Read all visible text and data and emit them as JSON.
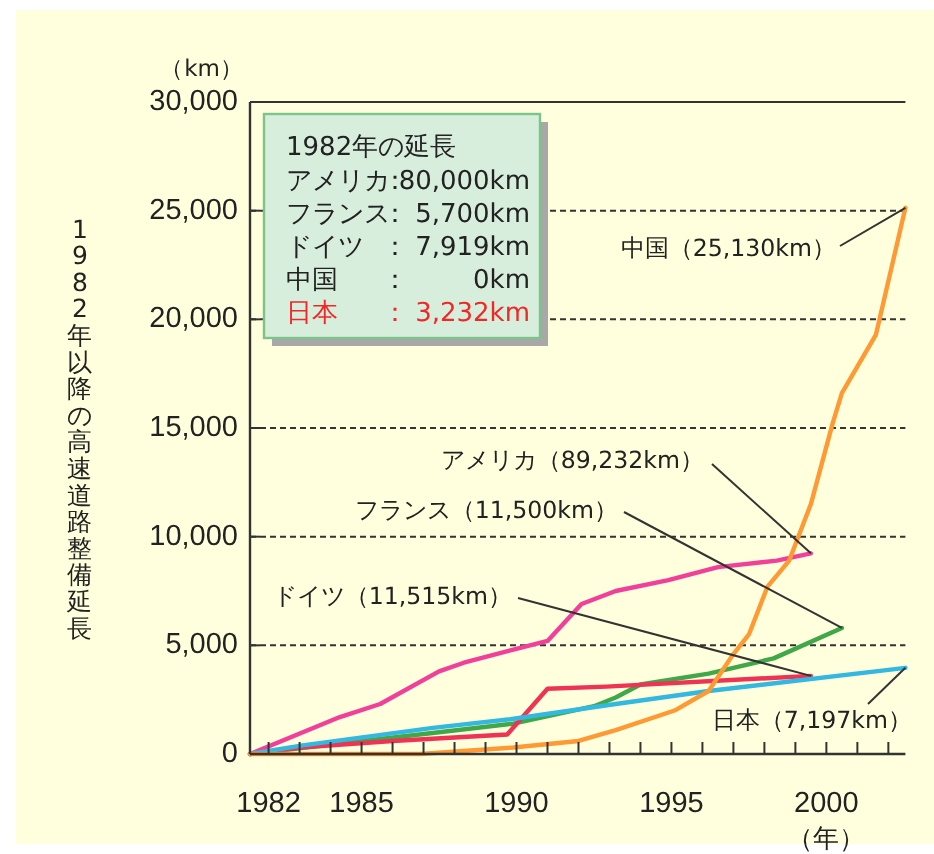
{
  "chart_data": {
    "type": "line",
    "xlabel": "（年）",
    "ylabel": "1982年以降の高速道路整備延長",
    "annotations": [
      "（km）",
      "1982年の延長",
      "アメリカ：80,000km",
      "フランス： 5,700km",
      "ドイツ　： 7,919km",
      "中国　　：     0km",
      "日本　　： 3,232km"
    ],
    "xlim": [
      1981.4,
      2002.55
    ],
    "xticks": [
      1982,
      {
        "value": 1983,
        "label": null
      },
      {
        "value": 1984,
        "label": null
      },
      1985,
      {
        "value": 1986,
        "label": null
      },
      {
        "value": 1987,
        "label": null
      },
      {
        "value": 1988,
        "label": null
      },
      {
        "value": 1989,
        "label": null
      },
      1990,
      {
        "value": 1991,
        "label": null
      },
      {
        "value": 1992,
        "label": null
      },
      {
        "value": 1993,
        "label": null
      },
      {
        "value": 1994,
        "label": null
      },
      1995,
      {
        "value": 1996,
        "label": null
      },
      {
        "value": 1997,
        "label": null
      },
      {
        "value": 1998,
        "label": null
      },
      {
        "value": 1999,
        "label": null
      },
      2000,
      {
        "value": 2001,
        "label": null
      },
      {
        "value": 2002,
        "label": null
      }
    ],
    "ylim": [
      0,
      30000
    ],
    "yticks": [
      0,
      {
        "value": 5000,
        "label": "5,000"
      },
      {
        "value": 10000,
        "label": "10,000"
      },
      {
        "value": 15000,
        "label": "15,000"
      },
      {
        "value": 20000,
        "label": "20,000"
      },
      {
        "value": 25000,
        "label": "25,000"
      },
      {
        "value": 30000,
        "label": "30,000"
      }
    ],
    "grid": "y",
    "series": [
      {
        "name": "アメリカ（89,232km）",
        "color": "#f2409a",
        "x": [
          1981.4,
          1984.3,
          1985.6,
          1987.5,
          1988.3,
          1989.9,
          1991.0,
          1992.1,
          1993.2,
          1994.9,
          1996.5,
          1998.4,
          1999.5
        ],
        "values": [
          0,
          1700,
          2300,
          3800,
          4200,
          4800,
          5200,
          6900,
          7500,
          8000,
          8600,
          8900,
          9232
        ]
      },
      {
        "name": "フランス（11,500km）",
        "color": "#40a848",
        "x": [
          1981.4,
          1987.5,
          1989.9,
          1992.5,
          1993.2,
          1994.0,
          1996.2,
          1998.3,
          2000.5
        ],
        "values": [
          0,
          1000,
          1400,
          2200,
          2600,
          3200,
          3700,
          4400,
          5800
        ]
      },
      {
        "name": "ドイツ（11,515km）",
        "color": "#ee3355",
        "x": [
          1981.4,
          1983.0,
          1986.0,
          1989.7,
          1991.0,
          1992.9,
          1999.5
        ],
        "values": [
          0,
          300,
          600,
          900,
          3000,
          3100,
          3596
        ]
      },
      {
        "name": "日本（7,197km）",
        "color": "#33b8e0",
        "x": [
          1981.4,
          1983.1,
          1985.2,
          1987.3,
          1989.8,
          1993.2,
          1996.2,
          2002.55
        ],
        "values": [
          0,
          400,
          800,
          1200,
          1600,
          2300,
          2900,
          3965
        ]
      },
      {
        "name": "中国（25,130km）",
        "color": "#ff9933",
        "x": [
          1981.4,
          1986.9,
          1989.9,
          1992.0,
          1993.2,
          1995.1,
          1996.2,
          1997.0,
          1997.5,
          1998.1,
          1998.8,
          1999.5,
          2000.2,
          2000.5,
          2001.6,
          2002.55
        ],
        "values": [
          0,
          0,
          300,
          600,
          1100,
          2000,
          2900,
          4600,
          5500,
          7700,
          8900,
          11500,
          15200,
          16600,
          19300,
          25130
        ]
      }
    ]
  }
}
